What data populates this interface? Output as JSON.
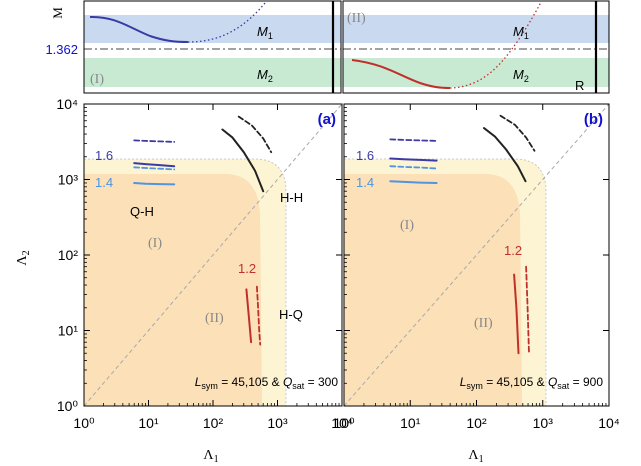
{
  "colors": {
    "band_blue": "#c9daf0",
    "band_green": "#c8ead3",
    "region_outer": "#fdf4d3",
    "region_inner": "#fbe0b8",
    "blue_dark": "#3b3aa6",
    "blue_light": "#4f95e0",
    "black": "#222222",
    "red": "#c0302b",
    "gray_label": "#888888",
    "accent_blue": "#1010d0"
  },
  "top_strip": {
    "y_label": "M",
    "x_label": "R",
    "reference_value": "1.362",
    "band_labels": [
      "M",
      "M"
    ],
    "band_subs": [
      "1",
      "2"
    ],
    "region_left": "(I)",
    "region_right": "(II)"
  },
  "chart_data": [
    {
      "type": "line",
      "panel": "(a)",
      "xlabel": "Λ",
      "xlabel_sub": "1",
      "ylabel": "Λ",
      "ylabel_sub": "2",
      "xscale": "log",
      "yscale": "log",
      "xlim": [
        1,
        10000
      ],
      "ylim": [
        1,
        10000
      ],
      "x_ticks": [
        "10⁰",
        "10¹",
        "10²",
        "10³",
        "10⁴"
      ],
      "y_ticks": [
        "10⁰",
        "10¹",
        "10²",
        "10³",
        "10⁴"
      ],
      "mass_labels": [
        "1.6",
        "1.4",
        "1.2"
      ],
      "phase_labels": [
        "Q-H",
        "H-H",
        "H-Q"
      ],
      "region_labels": [
        "(I)",
        "(II)"
      ],
      "annotation": {
        "L": "L",
        "L_sub": "sym",
        "L_val": " = 45,105 & ",
        "Q": "Q",
        "Q_sub": "sat",
        "Q_val": " = 300"
      },
      "series": [
        {
          "style": "dashed",
          "color": "blue_dark",
          "x": [
            6,
            9,
            15,
            25
          ],
          "y": [
            3300,
            3250,
            3200,
            3150
          ]
        },
        {
          "style": "solid",
          "color": "blue_dark",
          "x": [
            6,
            9,
            15,
            25
          ],
          "y": [
            1650,
            1600,
            1550,
            1500
          ]
        },
        {
          "style": "dashed",
          "color": "blue_light",
          "x": [
            6,
            9,
            15,
            25
          ],
          "y": [
            1450,
            1420,
            1390,
            1360
          ]
        },
        {
          "style": "solid",
          "color": "blue_light",
          "x": [
            6,
            9,
            15,
            25
          ],
          "y": [
            900,
            880,
            870,
            860
          ]
        },
        {
          "style": "dashed",
          "color": "black",
          "x": [
            250,
            400,
            600,
            800
          ],
          "y": [
            6800,
            5200,
            3500,
            2300
          ]
        },
        {
          "style": "solid",
          "color": "black",
          "x": [
            140,
            200,
            300,
            450,
            600
          ],
          "y": [
            4600,
            3600,
            2300,
            1300,
            700
          ]
        },
        {
          "style": "solid",
          "color": "red",
          "x": [
            330,
            360,
            390
          ],
          "y": [
            35,
            15,
            7
          ]
        },
        {
          "style": "dashed",
          "color": "red",
          "x": [
            480,
            500,
            520,
            540
          ],
          "y": [
            38,
            20,
            10,
            6.5
          ]
        }
      ]
    },
    {
      "type": "line",
      "panel": "(b)",
      "xlabel": "Λ",
      "xlabel_sub": "1",
      "xscale": "log",
      "yscale": "log",
      "xlim": [
        1,
        10000
      ],
      "ylim": [
        1,
        10000
      ],
      "x_ticks": [
        "10⁰",
        "10¹",
        "10²",
        "10³",
        "10⁴"
      ],
      "mass_labels": [
        "1.6",
        "1.4",
        "1.2"
      ],
      "region_labels": [
        "(I)",
        "(II)"
      ],
      "annotation": {
        "L": "L",
        "L_sub": "sym",
        "L_val": " = 45,105 & ",
        "Q": "Q",
        "Q_sub": "sat",
        "Q_val": " = 900"
      },
      "series": [
        {
          "style": "dashed",
          "color": "blue_dark",
          "x": [
            5,
            8,
            14,
            25
          ],
          "y": [
            3400,
            3350,
            3300,
            3250
          ]
        },
        {
          "style": "solid",
          "color": "blue_dark",
          "x": [
            5,
            8,
            14,
            25
          ],
          "y": [
            1900,
            1850,
            1820,
            1780
          ]
        },
        {
          "style": "dashed",
          "color": "blue_light",
          "x": [
            5,
            8,
            14,
            25
          ],
          "y": [
            1500,
            1470,
            1440,
            1400
          ]
        },
        {
          "style": "solid",
          "color": "blue_light",
          "x": [
            5,
            8,
            14,
            25
          ],
          "y": [
            950,
            930,
            910,
            900
          ]
        },
        {
          "style": "dashed",
          "color": "black",
          "x": [
            230,
            380,
            560,
            750
          ],
          "y": [
            7000,
            5300,
            3600,
            2400
          ]
        },
        {
          "style": "solid",
          "color": "black",
          "x": [
            130,
            190,
            280,
            420,
            550
          ],
          "y": [
            4800,
            3700,
            2500,
            1500,
            950
          ]
        },
        {
          "style": "solid",
          "color": "red",
          "x": [
            370,
            400,
            430
          ],
          "y": [
            55,
            20,
            5
          ]
        },
        {
          "style": "dashed",
          "color": "red",
          "x": [
            560,
            590,
            620
          ],
          "y": [
            70,
            20,
            5
          ]
        }
      ]
    }
  ]
}
